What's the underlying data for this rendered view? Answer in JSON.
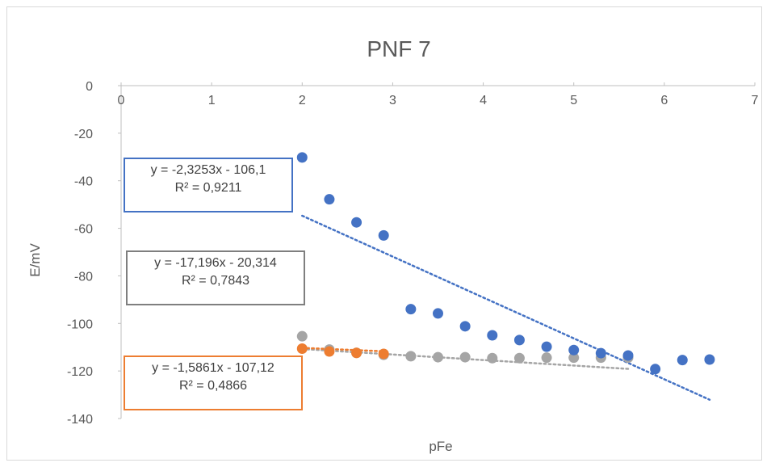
{
  "chart_data": {
    "type": "scatter",
    "title": "PNF 7",
    "xlabel": "pFe",
    "ylabel": "E/mV",
    "xlim": [
      0,
      7
    ],
    "ylim": [
      -140,
      0
    ],
    "x_ticks": [
      "0",
      "1",
      "2",
      "3",
      "4",
      "5",
      "6",
      "7"
    ],
    "y_ticks": [
      "0",
      "-20",
      "-40",
      "-60",
      "-80",
      "-100",
      "-120",
      "-140"
    ],
    "grid": false,
    "legend": "none",
    "series": [
      {
        "color": "#4472c4",
        "points": [
          [
            2.0,
            -30.2
          ],
          [
            2.3,
            -47.8
          ],
          [
            2.6,
            -57.5
          ],
          [
            2.9,
            -63.0
          ],
          [
            3.2,
            -94.0
          ],
          [
            3.5,
            -95.8
          ],
          [
            3.8,
            -101.2
          ],
          [
            4.1,
            -105.0
          ],
          [
            4.4,
            -107.0
          ],
          [
            4.7,
            -109.8
          ],
          [
            5.0,
            -111.2
          ],
          [
            5.3,
            -112.5
          ],
          [
            5.6,
            -113.5
          ],
          [
            5.9,
            -119.2
          ],
          [
            6.2,
            -115.4
          ],
          [
            6.5,
            -115.2
          ]
        ],
        "trendline": {
          "slope": -17.196,
          "intercept": -20.314,
          "x_range": [
            2.0,
            6.5
          ]
        },
        "equation": "y = -17,196x - 20,314",
        "r2": "R² = 0,7843",
        "equation_box_color": "#7f7f7f"
      },
      {
        "color": "#ed7d31",
        "points": [
          [
            2.0,
            -110.6
          ],
          [
            2.3,
            -111.8
          ],
          [
            2.6,
            -112.4
          ],
          [
            2.9,
            -112.8
          ]
        ],
        "trendline": {
          "slope": -1.5861,
          "intercept": -107.12,
          "x_range": [
            2.0,
            2.9
          ]
        },
        "equation": "y = -1,5861x - 107,12",
        "r2": "R² = 0,4866",
        "equation_box_color": "#ed7d31"
      },
      {
        "color": "#a5a5a5",
        "points": [
          [
            2.0,
            -105.4
          ],
          [
            2.3,
            -111.0
          ],
          [
            2.6,
            -112.4
          ],
          [
            2.9,
            -113.2
          ],
          [
            3.2,
            -113.8
          ],
          [
            3.5,
            -114.2
          ],
          [
            3.8,
            -114.2
          ],
          [
            4.1,
            -114.6
          ],
          [
            4.4,
            -114.6
          ],
          [
            4.7,
            -114.4
          ],
          [
            5.0,
            -114.4
          ],
          [
            5.3,
            -114.4
          ],
          [
            5.6,
            -114.4
          ]
        ],
        "trendline": {
          "slope": -2.3253,
          "intercept": -106.1,
          "x_range": [
            2.0,
            5.6
          ]
        },
        "equation": "y = -2,3253x - 106,1",
        "r2": "R² = 0,9211",
        "equation_box_color": "#4472c4"
      }
    ]
  }
}
